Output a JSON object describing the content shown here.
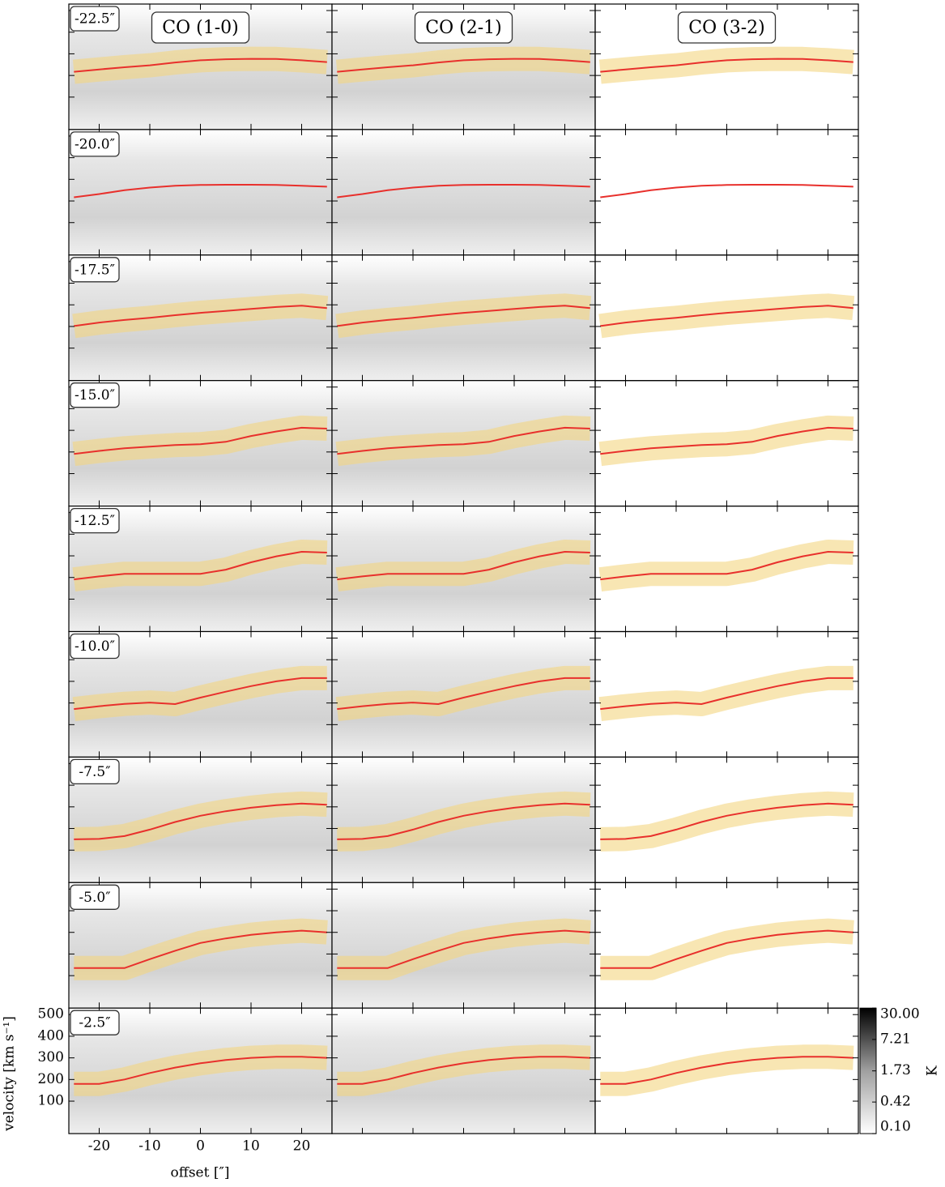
{
  "chart_data": {
    "type": "line",
    "columns": [
      "CO (1-0)",
      "CO (2-1)",
      "CO (3-2)"
    ],
    "x": [
      -25,
      -20,
      -15,
      -10,
      -5,
      0,
      5,
      10,
      15,
      20,
      25
    ],
    "rows": [
      {
        "label": "-22.5″",
        "band": true,
        "values": [
          217,
          228,
          238,
          247,
          260,
          270,
          275,
          277,
          276,
          270,
          262
        ]
      },
      {
        "label": "-20.0″",
        "band": false,
        "values": [
          217,
          232,
          250,
          262,
          270,
          274,
          275,
          275,
          274,
          270,
          266
        ]
      },
      {
        "label": "-17.5″",
        "band": true,
        "values": [
          202,
          218,
          230,
          240,
          252,
          263,
          272,
          281,
          290,
          296,
          285
        ]
      },
      {
        "label": "-15.0″",
        "band": true,
        "values": [
          191,
          205,
          217,
          225,
          232,
          236,
          247,
          274,
          295,
          312,
          308
        ]
      },
      {
        "label": "-12.5″",
        "band": true,
        "values": [
          191,
          205,
          217,
          217,
          217,
          217,
          236,
          270,
          298,
          319,
          315
        ]
      },
      {
        "label": "-10.0″",
        "band": true,
        "values": [
          172,
          185,
          196,
          202,
          195,
          225,
          252,
          278,
          300,
          315,
          315
        ]
      },
      {
        "label": "-7.5″",
        "band": true,
        "values": [
          150,
          152,
          165,
          195,
          230,
          259,
          280,
          296,
          308,
          315,
          310
        ]
      },
      {
        "label": "-5.0″",
        "band": true,
        "values": [
          135,
          135,
          135,
          176,
          215,
          251,
          272,
          289,
          300,
          308,
          300
        ]
      },
      {
        "label": "-2.5″",
        "band": true,
        "values": [
          180,
          180,
          200,
          230,
          255,
          275,
          290,
          300,
          305,
          305,
          300
        ]
      }
    ],
    "color": "#e8302c",
    "band_color": "#f3d580",
    "xlim": [
      -26,
      26
    ],
    "ylim": [
      -50,
      530
    ],
    "xticks": [
      -20,
      -10,
      0,
      10,
      20
    ],
    "yticks": [
      100,
      200,
      300,
      400,
      500
    ],
    "xlabel": "offset [″]",
    "ylabel": "velocity [km s⁻¹]",
    "colorbar": {
      "label": "K",
      "log": true,
      "lim": [
        0.1,
        30
      ],
      "ticks": [
        {
          "value": 0.1,
          "label": "0.10"
        },
        0.42,
        1.73,
        7.21,
        {
          "value": 30,
          "label": "30.00"
        }
      ]
    }
  }
}
